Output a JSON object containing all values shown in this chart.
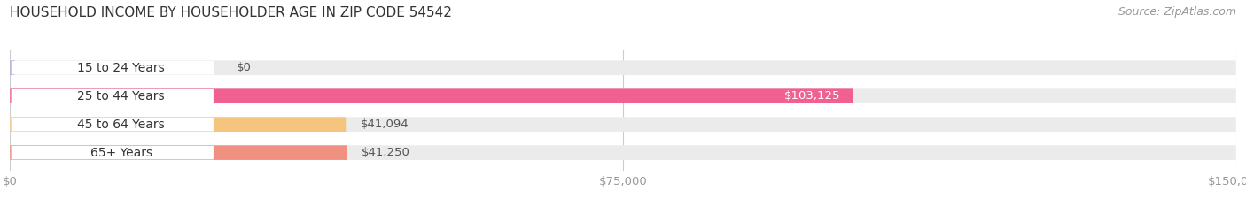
{
  "title": "HOUSEHOLD INCOME BY HOUSEHOLDER AGE IN ZIP CODE 54542",
  "source": "Source: ZipAtlas.com",
  "categories": [
    "15 to 24 Years",
    "25 to 44 Years",
    "45 to 64 Years",
    "65+ Years"
  ],
  "values": [
    0,
    103125,
    41094,
    41250
  ],
  "bar_colors": [
    "#a8a8d8",
    "#f06090",
    "#f5c580",
    "#f09080"
  ],
  "value_label_colors": [
    "#555555",
    "#ffffff",
    "#555555",
    "#555555"
  ],
  "value_labels": [
    "$0",
    "$103,125",
    "$41,094",
    "$41,250"
  ],
  "bar_bg_color": "#ebebeb",
  "background_color": "#ffffff",
  "xlim_max": 150000,
  "xtick_values": [
    0,
    75000,
    150000
  ],
  "xtick_labels": [
    "$0",
    "$75,000",
    "$150,000"
  ],
  "bar_height": 0.52,
  "title_fontsize": 11,
  "label_fontsize": 10,
  "value_fontsize": 9.5,
  "source_fontsize": 9
}
